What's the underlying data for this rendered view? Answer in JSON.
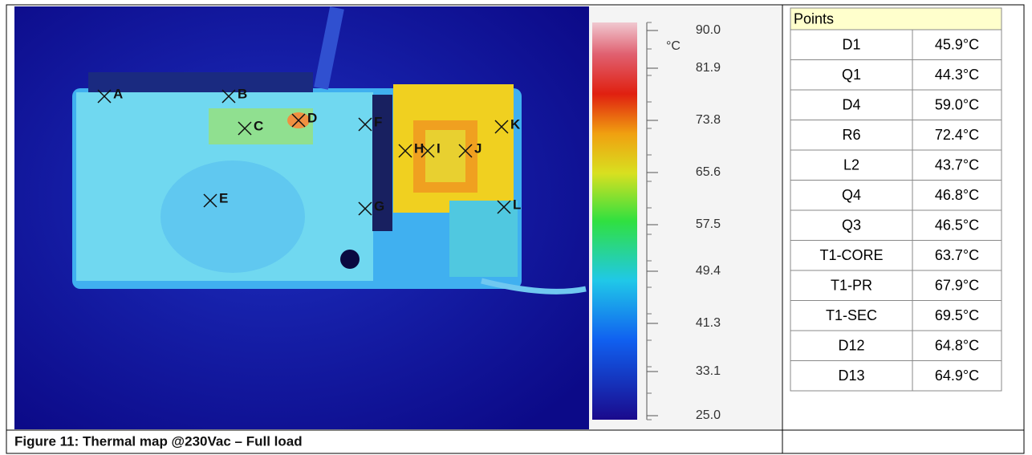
{
  "figure": {
    "caption": "Figure 11: Thermal map @230Vac – Full load",
    "markers": [
      "A",
      "B",
      "C",
      "D",
      "E",
      "F",
      "G",
      "H",
      "I",
      "J",
      "K",
      "L"
    ],
    "scale": {
      "unit": "°C",
      "ticks": [
        "90.0",
        "81.9",
        "73.8",
        "65.6",
        "57.5",
        "49.4",
        "41.3",
        "33.1",
        "25.0"
      ]
    }
  },
  "table": {
    "header": "Points",
    "rows": [
      [
        "D1",
        "45.9°C"
      ],
      [
        "Q1",
        "44.3°C"
      ],
      [
        "D4",
        "59.0°C"
      ],
      [
        "R6",
        "72.4°C"
      ],
      [
        "L2",
        "43.7°C"
      ],
      [
        "Q4",
        "46.8°C"
      ],
      [
        "Q3",
        "46.5°C"
      ],
      [
        "T1-CORE",
        "63.7°C"
      ],
      [
        "T1-PR",
        "67.9°C"
      ],
      [
        "T1-SEC",
        "69.5°C"
      ],
      [
        "D12",
        "64.8°C"
      ],
      [
        "D13",
        "64.9°C"
      ]
    ]
  }
}
